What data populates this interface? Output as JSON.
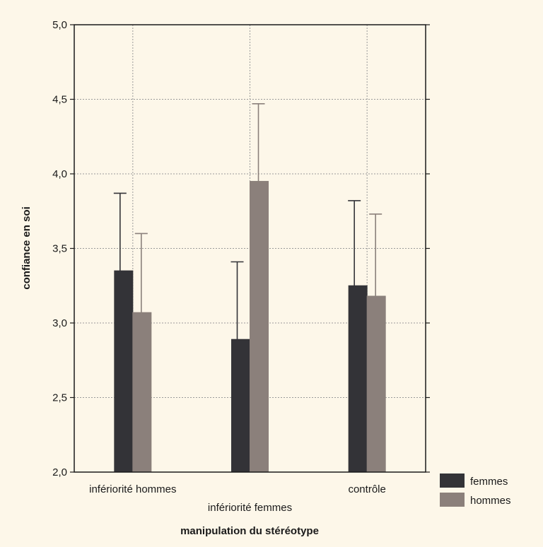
{
  "chart_data": {
    "type": "bar",
    "categories": [
      "infériorité hommes",
      "infériorité femmes",
      "contrôle"
    ],
    "series": [
      {
        "name": "femmes",
        "color": "#333337",
        "values": [
          3.35,
          2.89,
          3.25
        ],
        "error_upper": [
          3.87,
          3.41,
          3.82
        ]
      },
      {
        "name": "hommes",
        "color": "#8b807b",
        "values": [
          3.07,
          3.95,
          3.18
        ],
        "error_upper": [
          3.6,
          4.47,
          3.73
        ]
      }
    ],
    "xlabel": "manipulation du stéréotype",
    "ylabel": "confiance en soi",
    "ylim": [
      2.0,
      5.0
    ],
    "yticks": [
      "2,0",
      "2,5",
      "3,0",
      "3,5",
      "4,0",
      "4,5",
      "5,0"
    ],
    "grid": true,
    "legend_position": "bottom-right",
    "background": "#fdf7e9"
  }
}
